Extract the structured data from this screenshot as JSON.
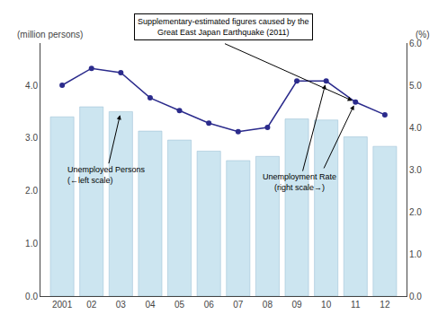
{
  "chart_data": {
    "type": "bar",
    "categories": [
      "2001",
      "02",
      "03",
      "04",
      "05",
      "06",
      "07",
      "08",
      "09",
      "10",
      "11",
      "12"
    ],
    "series": [
      {
        "type": "bar",
        "color": "#cce5f0",
        "values": [
          3.4,
          3.59,
          3.5,
          3.13,
          2.96,
          2.75,
          2.57,
          2.65,
          3.36,
          3.34,
          3.02,
          2.84
        ]
      },
      {
        "type": "line",
        "axis": "y2",
        "color": "#2b2b8c",
        "marker": "circle",
        "values": [
          5.0,
          5.4,
          5.3,
          4.7,
          4.4,
          4.1,
          3.9,
          4.0,
          5.1,
          5.1,
          4.6,
          4.3
        ]
      }
    ],
    "ylabel": "(million persons)",
    "y2label": "(%)",
    "ylim": [
      0.0,
      4.8
    ],
    "yticks": [
      {
        "value": 0,
        "label": "0.0"
      },
      {
        "value": 1,
        "label": "1.0"
      },
      {
        "value": 2,
        "label": "2.0"
      },
      {
        "value": 3,
        "label": "3.0"
      },
      {
        "value": 4,
        "label": "4.0"
      }
    ],
    "y2lim": [
      0.0,
      6.0
    ],
    "y2ticks": [
      {
        "value": 0,
        "label": "0.0"
      },
      {
        "value": 1,
        "label": "1.0"
      },
      {
        "value": 2,
        "label": "2.0"
      },
      {
        "value": 3,
        "label": "3.0"
      },
      {
        "value": 4,
        "label": "4.0"
      },
      {
        "value": 5,
        "label": "5.0"
      },
      {
        "value": 6,
        "label": "6.0"
      }
    ],
    "annotations": [
      "Supplementary-estimated figures caused by the\nGreat East Japan Earthquake (2011)",
      "Unemployed Persons\n(←left scale)",
      "Unemployment Rate\n(right scale→)"
    ],
    "grid": false
  }
}
